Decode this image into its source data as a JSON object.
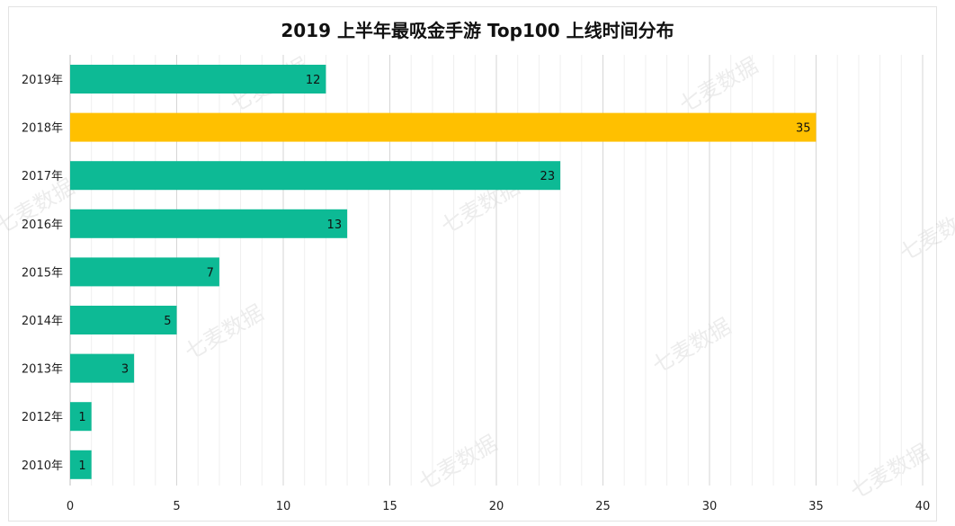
{
  "chart_data": {
    "type": "bar",
    "orientation": "horizontal",
    "title": "2019 上半年最吸金手游 Top100 上线时间分布",
    "categories": [
      "2019年",
      "2018年",
      "2017年",
      "2016年",
      "2015年",
      "2014年",
      "2013年",
      "2012年",
      "2010年"
    ],
    "values": [
      12,
      35,
      23,
      13,
      7,
      5,
      3,
      1,
      1
    ],
    "xlim": [
      0,
      40
    ],
    "x_ticks": [
      0,
      5,
      10,
      15,
      20,
      25,
      30,
      35,
      40
    ],
    "grid": true,
    "data_labels": true,
    "legend": "none",
    "colors": {
      "default_bar": "#0dba95",
      "highlight_bar": "#ffc000",
      "highlight_category": "2018年"
    }
  },
  "watermark": {
    "text": "七麦数据"
  }
}
